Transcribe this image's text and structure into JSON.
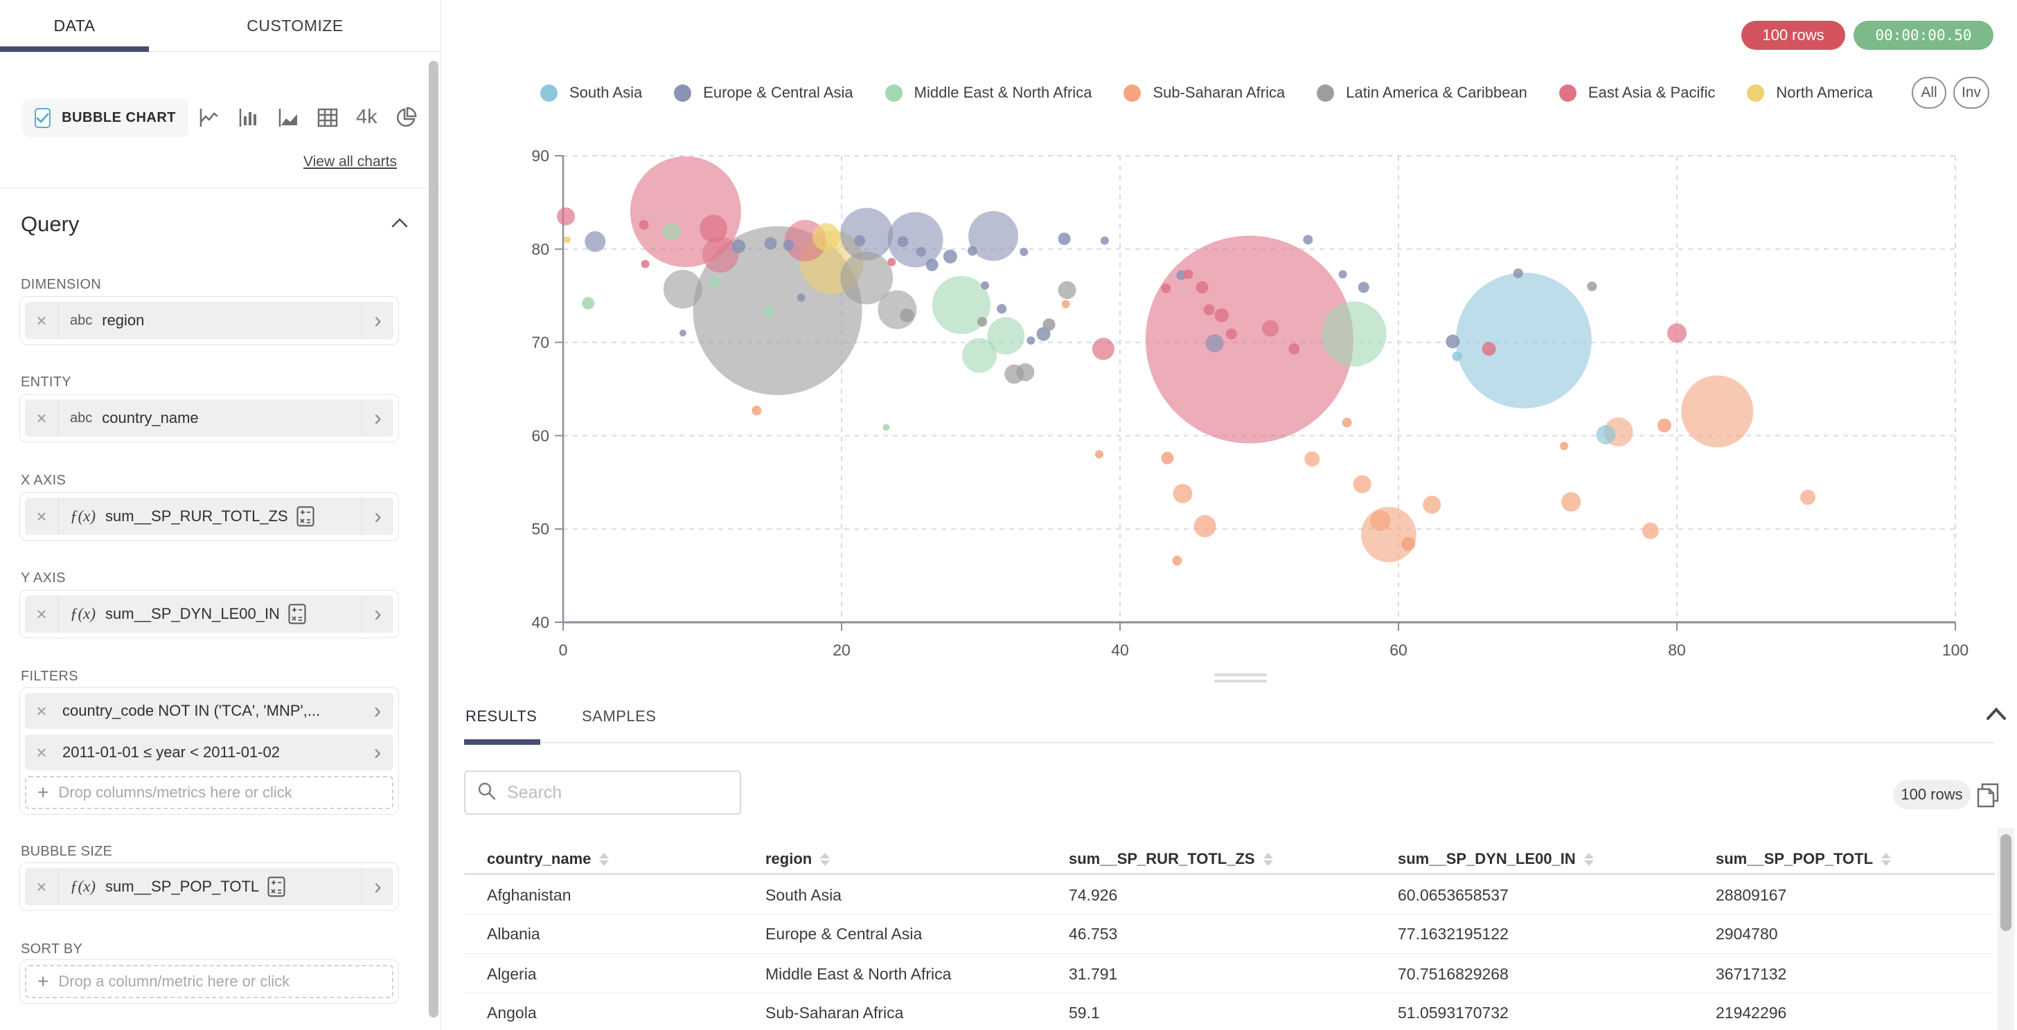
{
  "sidebar": {
    "tabs": [
      {
        "label": "DATA",
        "active": true
      },
      {
        "label": "CUSTOMIZE",
        "active": false
      }
    ],
    "chart_type": {
      "label": "BUBBLE CHART",
      "checked": true,
      "alt_icons": [
        "line-chart",
        "bar-chart",
        "area-chart",
        "table-chart",
        "big-number-4k",
        "pie-chart"
      ],
      "big_number_label": "4k",
      "view_all": "View all charts"
    },
    "query": {
      "title": "Query",
      "sections": [
        {
          "label": "DIMENSION",
          "fields": [
            {
              "prefix": "abc",
              "text": "region"
            }
          ]
        },
        {
          "label": "ENTITY",
          "fields": [
            {
              "prefix": "abc",
              "text": "country_name"
            }
          ]
        },
        {
          "label": "X AXIS",
          "fields": [
            {
              "prefix": "ƒ(x)",
              "text": "sum__SP_RUR_TOTL_ZS",
              "calc": true
            }
          ]
        },
        {
          "label": "Y AXIS",
          "fields": [
            {
              "prefix": "ƒ(x)",
              "text": "sum__SP_DYN_LE00_IN",
              "calc": true
            }
          ]
        },
        {
          "label": "FILTERS",
          "fields": [
            {
              "text": "country_code NOT IN ('TCA', 'MNP',..."
            },
            {
              "text": "2011-01-01 ≤ year < 2011-01-02"
            }
          ],
          "drop_hint": "Drop columns/metrics here or click"
        },
        {
          "label": "BUBBLE SIZE",
          "fields": [
            {
              "prefix": "ƒ(x)",
              "text": "sum__SP_POP_TOTL",
              "calc": true
            }
          ]
        },
        {
          "label": "SORT BY",
          "fields": [],
          "drop_hint": "Drop a column/metric here or click"
        }
      ]
    }
  },
  "topbar": {
    "row_count": "100 rows",
    "timer": "00:00:00.50"
  },
  "legend": {
    "items": [
      {
        "label": "South Asia",
        "color": "#8fc7da"
      },
      {
        "label": "Europe & Central Asia",
        "color": "#8a93b4"
      },
      {
        "label": "Middle East & North Africa",
        "color": "#a2d7b2"
      },
      {
        "label": "Sub-Saharan Africa",
        "color": "#f4a57f"
      },
      {
        "label": "Latin America & Caribbean",
        "color": "#9d9d9d"
      },
      {
        "label": "East Asia & Pacific",
        "color": "#df7488"
      },
      {
        "label": "North America",
        "color": "#efd16f"
      }
    ],
    "all": "All",
    "inv": "Inv"
  },
  "chart_data": {
    "type": "scatter",
    "subtype": "bubble",
    "x_field": "sum__SP_RUR_TOTL_ZS",
    "y_field": "sum__SP_DYN_LE00_IN",
    "size_field": "sum__SP_POP_TOTL",
    "xlim": [
      0,
      100
    ],
    "ylim": [
      40,
      90
    ],
    "x_ticks": [
      0,
      20,
      40,
      60,
      80,
      100
    ],
    "y_ticks": [
      40,
      50,
      60,
      70,
      80,
      90
    ],
    "grid": "dashed",
    "legend_position": "top",
    "series": [
      {
        "region": "South Asia",
        "color": "#8fc7da",
        "points": [
          [
            69.0,
            70.2,
            98
          ],
          [
            74.9,
            60.1,
            14
          ],
          [
            64.2,
            68.5,
            7
          ]
        ]
      },
      {
        "region": "Europe & Central Asia",
        "color": "#8a93b4",
        "points": [
          [
            2.3,
            80.8,
            15
          ],
          [
            12.6,
            80.3,
            10
          ],
          [
            14.9,
            80.6,
            9
          ],
          [
            16.2,
            80.4,
            8
          ],
          [
            21.3,
            80.9,
            8
          ],
          [
            21.8,
            81.6,
            38
          ],
          [
            25.3,
            81.0,
            40
          ],
          [
            30.9,
            81.4,
            36
          ],
          [
            24.4,
            80.8,
            8
          ],
          [
            25.7,
            79.7,
            7
          ],
          [
            26.5,
            78.3,
            9
          ],
          [
            27.8,
            79.2,
            10
          ],
          [
            29.4,
            79.8,
            7
          ],
          [
            33.1,
            79.7,
            6
          ],
          [
            36.0,
            81.1,
            9
          ],
          [
            38.9,
            80.9,
            6
          ],
          [
            30.3,
            76.1,
            6
          ],
          [
            31.5,
            73.6,
            7
          ],
          [
            34.5,
            70.9,
            10
          ],
          [
            33.6,
            70.2,
            6
          ],
          [
            8.6,
            71.0,
            5
          ],
          [
            17.1,
            74.8,
            6
          ],
          [
            44.4,
            77.2,
            7
          ],
          [
            53.5,
            81.0,
            7
          ],
          [
            56.0,
            77.3,
            6
          ],
          [
            57.5,
            75.9,
            8
          ],
          [
            46.8,
            69.9,
            13
          ],
          [
            63.9,
            70.1,
            10
          ],
          [
            68.6,
            77.4,
            7
          ]
        ]
      },
      {
        "region": "Middle East & North Africa",
        "color": "#a2d7b2",
        "points": [
          [
            1.8,
            74.2,
            9
          ],
          [
            7.8,
            81.9,
            13
          ],
          [
            10.9,
            76.4,
            8
          ],
          [
            14.8,
            73.4,
            8
          ],
          [
            28.6,
            74.0,
            42
          ],
          [
            31.8,
            70.7,
            27
          ],
          [
            29.9,
            68.6,
            25
          ],
          [
            56.8,
            70.9,
            47
          ],
          [
            23.2,
            60.9,
            5
          ]
        ]
      },
      {
        "region": "Sub-Saharan Africa",
        "color": "#f4a57f",
        "points": [
          [
            13.9,
            62.7,
            7
          ],
          [
            36.1,
            74.1,
            6
          ],
          [
            38.5,
            58.0,
            6
          ],
          [
            43.4,
            57.6,
            9
          ],
          [
            44.5,
            53.8,
            14
          ],
          [
            46.1,
            50.3,
            16
          ],
          [
            44.1,
            46.6,
            7
          ],
          [
            53.8,
            57.5,
            11
          ],
          [
            57.4,
            54.8,
            13
          ],
          [
            62.4,
            52.6,
            13
          ],
          [
            59.3,
            49.4,
            40
          ],
          [
            58.7,
            50.9,
            15
          ],
          [
            60.7,
            48.4,
            10
          ],
          [
            72.4,
            52.9,
            14
          ],
          [
            71.9,
            58.9,
            6
          ],
          [
            75.8,
            60.4,
            21
          ],
          [
            79.1,
            61.1,
            10
          ],
          [
            78.1,
            49.8,
            12
          ],
          [
            82.9,
            62.6,
            52
          ],
          [
            89.4,
            53.4,
            11
          ],
          [
            56.3,
            61.4,
            7
          ]
        ]
      },
      {
        "region": "Latin America & Caribbean",
        "color": "#9d9d9d",
        "points": [
          [
            15.4,
            73.4,
            122
          ],
          [
            8.6,
            75.7,
            28
          ],
          [
            24.0,
            73.5,
            28
          ],
          [
            24.7,
            72.9,
            10
          ],
          [
            32.4,
            66.6,
            14
          ],
          [
            36.2,
            75.6,
            13
          ],
          [
            34.9,
            71.9,
            9
          ],
          [
            30.1,
            72.2,
            7
          ],
          [
            21.8,
            76.9,
            38
          ],
          [
            73.9,
            76.0,
            7
          ],
          [
            33.2,
            66.8,
            13
          ]
        ]
      },
      {
        "region": "East Asia & Pacific",
        "color": "#df7488",
        "points": [
          [
            0.2,
            83.5,
            13
          ],
          [
            5.8,
            82.6,
            7
          ],
          [
            8.8,
            84.0,
            80
          ],
          [
            10.8,
            82.2,
            20
          ],
          [
            11.3,
            79.4,
            26
          ],
          [
            5.9,
            78.4,
            6
          ],
          [
            17.4,
            80.9,
            30
          ],
          [
            23.6,
            78.6,
            6
          ],
          [
            49.3,
            70.3,
            150
          ],
          [
            38.8,
            69.3,
            16
          ],
          [
            44.9,
            77.3,
            7
          ],
          [
            45.9,
            75.9,
            9
          ],
          [
            46.4,
            73.5,
            8
          ],
          [
            47.3,
            72.9,
            10
          ],
          [
            48.0,
            70.9,
            8
          ],
          [
            50.8,
            71.5,
            12
          ],
          [
            52.5,
            69.3,
            8
          ],
          [
            66.5,
            69.3,
            10
          ],
          [
            80.0,
            71.0,
            14
          ],
          [
            43.3,
            75.8,
            7
          ]
        ]
      },
      {
        "region": "North America",
        "color": "#efd16f",
        "points": [
          [
            0.3,
            81.0,
            5
          ],
          [
            18.9,
            81.3,
            20
          ],
          [
            19.3,
            78.6,
            46
          ]
        ]
      }
    ]
  },
  "results": {
    "tabs": [
      {
        "label": "RESULTS",
        "active": true
      },
      {
        "label": "SAMPLES",
        "active": false
      }
    ],
    "search_placeholder": "Search",
    "row_badge": "100 rows",
    "table": {
      "columns": [
        "country_name",
        "region",
        "sum__SP_RUR_TOTL_ZS",
        "sum__SP_DYN_LE00_IN",
        "sum__SP_POP_TOTL"
      ],
      "rows": [
        [
          "Afghanistan",
          "South Asia",
          "74.926",
          "60.0653658537",
          "28809167"
        ],
        [
          "Albania",
          "Europe & Central Asia",
          "46.753",
          "77.1632195122",
          "2904780"
        ],
        [
          "Algeria",
          "Middle East & North Africa",
          "31.791",
          "70.7516829268",
          "36717132"
        ],
        [
          "Angola",
          "Sub-Saharan Africa",
          "59.1",
          "51.0593170732",
          "21942296"
        ]
      ]
    }
  }
}
